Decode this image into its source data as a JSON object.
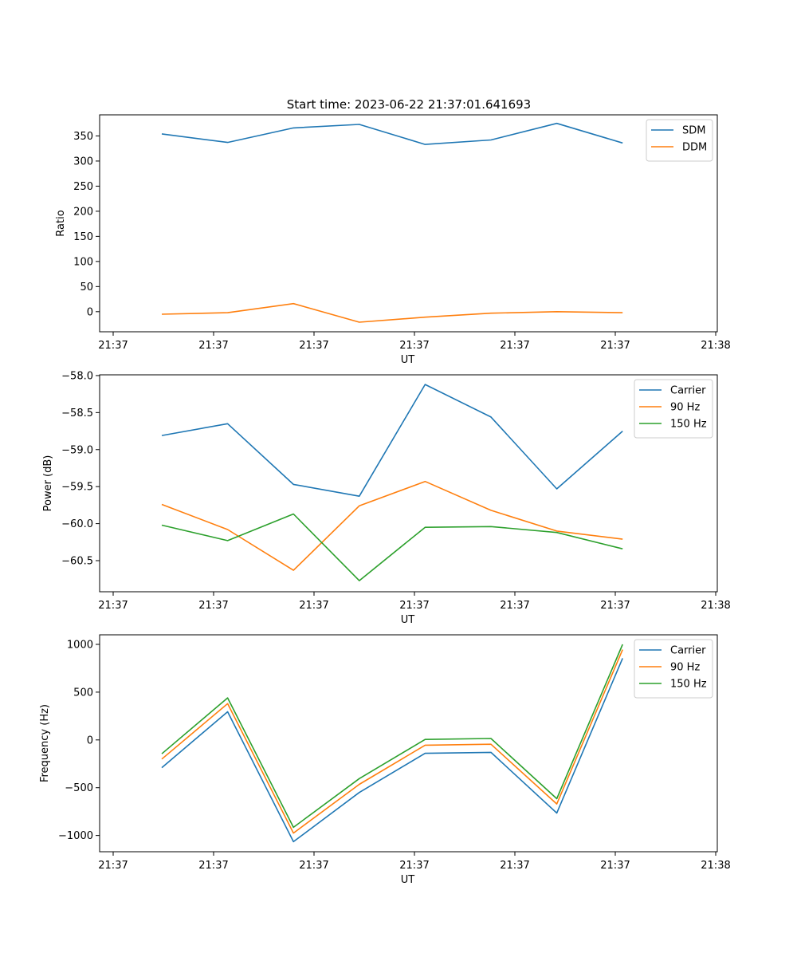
{
  "figure": {
    "title": "Start time: 2023-06-22 21:37:01.641693"
  },
  "chart_data": [
    {
      "type": "line",
      "xlabel": "UT",
      "ylabel": "Ratio",
      "x_tick_labels": [
        "21:37",
        "21:37",
        "21:37",
        "21:37",
        "21:37",
        "21:37",
        "21:38"
      ],
      "xlim": [
        -0.75,
        8.25
      ],
      "x": [
        0,
        1,
        2,
        3,
        4,
        5,
        6,
        7
      ],
      "ylim": [
        -40,
        392
      ],
      "yticks": [
        0,
        50,
        100,
        150,
        200,
        250,
        300,
        350
      ],
      "grid": false,
      "legend": "top-right",
      "series": [
        {
          "name": "SDM",
          "color": "#1f77b4",
          "values": [
            354,
            337,
            366,
            373,
            333,
            342,
            375,
            336
          ]
        },
        {
          "name": "DDM",
          "color": "#ff7f0e",
          "values": [
            -5,
            -2,
            16,
            -21,
            -11,
            -3,
            0,
            -2
          ]
        }
      ]
    },
    {
      "type": "line",
      "xlabel": "UT",
      "ylabel": "Power (dB)",
      "x_tick_labels": [
        "21:37",
        "21:37",
        "21:37",
        "21:37",
        "21:37",
        "21:37",
        "21:38"
      ],
      "xlim": [
        -0.75,
        8.25
      ],
      "x": [
        0,
        1,
        2,
        3,
        4,
        5,
        6,
        7
      ],
      "ylim": [
        -60.92,
        -57.99
      ],
      "yticks": [
        -58.0,
        -58.5,
        -59.0,
        -59.5,
        -60.0,
        -60.5
      ],
      "ytick_labels": [
        "−58.0",
        "−58.5",
        "−59.0",
        "−59.5",
        "−60.0",
        "−60.5"
      ],
      "grid": false,
      "legend": "top-right",
      "series": [
        {
          "name": "Carrier",
          "color": "#1f77b4",
          "values": [
            -58.81,
            -58.65,
            -59.47,
            -59.63,
            -58.12,
            -58.56,
            -59.53,
            -58.75
          ]
        },
        {
          "name": "90 Hz",
          "color": "#ff7f0e",
          "values": [
            -59.74,
            -60.08,
            -60.63,
            -59.76,
            -59.43,
            -59.82,
            -60.1,
            -60.21
          ]
        },
        {
          "name": "150 Hz",
          "color": "#2ca02c",
          "values": [
            -60.02,
            -60.23,
            -59.87,
            -60.77,
            -60.05,
            -60.04,
            -60.12,
            -60.34
          ]
        }
      ]
    },
    {
      "type": "line",
      "xlabel": "UT",
      "ylabel": "Frequency (Hz)",
      "x_tick_labels": [
        "21:37",
        "21:37",
        "21:37",
        "21:37",
        "21:37",
        "21:37",
        "21:38"
      ],
      "xlim": [
        -0.75,
        8.25
      ],
      "x": [
        0,
        1,
        2,
        3,
        4,
        5,
        6,
        7
      ],
      "ylim": [
        -1170,
        1100
      ],
      "yticks": [
        1000,
        500,
        0,
        -500,
        -1000
      ],
      "ytick_labels": [
        "1000",
        "500",
        "0",
        "−500",
        "−1000"
      ],
      "grid": false,
      "legend": "top-right",
      "series": [
        {
          "name": "Carrier",
          "color": "#1f77b4",
          "values": [
            -290,
            295,
            -1065,
            -550,
            -140,
            -130,
            -765,
            855
          ]
        },
        {
          "name": "90 Hz",
          "color": "#ff7f0e",
          "values": [
            -200,
            380,
            -975,
            -465,
            -55,
            -45,
            -670,
            945
          ]
        },
        {
          "name": "150 Hz",
          "color": "#2ca02c",
          "values": [
            -145,
            440,
            -915,
            -405,
            5,
            15,
            -615,
            1000
          ]
        }
      ]
    }
  ]
}
